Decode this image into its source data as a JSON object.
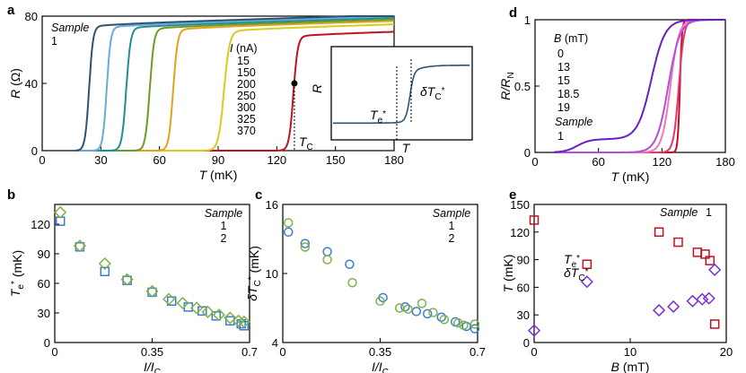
{
  "chart_data": [
    {
      "id": "a",
      "panel_label": "a",
      "type": "line",
      "xlabel": "T (mK)",
      "ylabel": "R (Ω)",
      "xlim": [
        0,
        180
      ],
      "ylim": [
        0,
        80
      ],
      "xticks": [
        0,
        30,
        60,
        90,
        120,
        150,
        180
      ],
      "yticks": [
        0,
        40,
        80
      ],
      "sample_title": "Sample",
      "sample_value": "1",
      "legend_title": "I (nA)",
      "Tc_label": "T_C",
      "Tc": 129,
      "Tc_point": [
        129,
        40
      ],
      "series": [
        {
          "name": "15",
          "color": "#c0111f",
          "tmid": 128.5,
          "width": 2.2,
          "rmax": 69
        },
        {
          "name": "150",
          "color": "#d9cc1c",
          "tmid": 93,
          "width": 2.8,
          "rmax": 72
        },
        {
          "name": "200",
          "color": "#e3a21a",
          "tmid": 67,
          "width": 2.2,
          "rmax": 73
        },
        {
          "name": "250",
          "color": "#6e9a26",
          "tmid": 55,
          "width": 2.2,
          "rmax": 73.5
        },
        {
          "name": "300",
          "color": "#1f8f8f",
          "tmid": 43,
          "width": 2.2,
          "rmax": 74
        },
        {
          "name": "325",
          "color": "#6aaad9",
          "tmid": 33,
          "width": 2.0,
          "rmax": 74.5
        },
        {
          "name": "370",
          "color": "#2c5476",
          "tmid": 24,
          "width": 2.0,
          "rmax": 75
        }
      ],
      "inset": {
        "xlabel": "T",
        "ylabel": "R",
        "te_label": "T_e*",
        "dtc_label": "δT_C*"
      }
    },
    {
      "id": "b",
      "panel_label": "b",
      "type": "scatter",
      "xlabel": "I/I_C",
      "ylabel": "T_e* (mK)",
      "xlim": [
        0,
        0.7
      ],
      "ylim": [
        0,
        140
      ],
      "xticks": [
        0,
        0.35,
        0.7
      ],
      "xticklabels": [
        "0",
        "0.35",
        "0.7"
      ],
      "yticks": [
        0,
        30,
        60,
        90,
        120
      ],
      "legend_title": "Sample",
      "series": [
        {
          "name": "1",
          "marker": "square",
          "color": "#3d7bd0",
          "points": [
            [
              0.02,
              123
            ],
            [
              0.09,
              97
            ],
            [
              0.18,
              72
            ],
            [
              0.26,
              63
            ],
            [
              0.35,
              51
            ],
            [
              0.42,
              42
            ],
            [
              0.48,
              36
            ],
            [
              0.53,
              32
            ],
            [
              0.58,
              27
            ],
            [
              0.63,
              22
            ],
            [
              0.67,
              19
            ],
            [
              0.68,
              17
            ]
          ]
        },
        {
          "name": "2",
          "marker": "diamond",
          "color": "#7cb342",
          "points": [
            [
              0.02,
              132
            ],
            [
              0.09,
              98
            ],
            [
              0.18,
              80
            ],
            [
              0.26,
              64
            ],
            [
              0.35,
              52
            ],
            [
              0.41,
              44
            ],
            [
              0.46,
              40
            ],
            [
              0.51,
              35
            ],
            [
              0.55,
              31
            ],
            [
              0.59,
              28
            ],
            [
              0.63,
              25
            ],
            [
              0.66,
              22
            ],
            [
              0.68,
              21
            ]
          ]
        }
      ]
    },
    {
      "id": "c",
      "panel_label": "c",
      "type": "scatter",
      "xlabel": "I/I_C",
      "ylabel": "δT_C* (mK)",
      "xlim": [
        0,
        0.7
      ],
      "ylim": [
        4,
        16
      ],
      "xticks": [
        0,
        0.35,
        0.7
      ],
      "xticklabels": [
        "0",
        "0.35",
        "0.7"
      ],
      "yticks": [
        4,
        10,
        16
      ],
      "legend_title": "Sample",
      "series": [
        {
          "name": "1",
          "marker": "circle",
          "color": "#3d7bd0",
          "points": [
            [
              0.02,
              13.6
            ],
            [
              0.08,
              12.6
            ],
            [
              0.16,
              11.9
            ],
            [
              0.24,
              10.8
            ],
            [
              0.36,
              7.9
            ],
            [
              0.44,
              7.1
            ],
            [
              0.48,
              6.7
            ],
            [
              0.52,
              6.5
            ],
            [
              0.57,
              6.2
            ],
            [
              0.62,
              5.8
            ],
            [
              0.66,
              5.4
            ],
            [
              0.69,
              5.2
            ]
          ]
        },
        {
          "name": "2",
          "marker": "circle",
          "color": "#7cb342",
          "points": [
            [
              0.02,
              14.4
            ],
            [
              0.08,
              12.3
            ],
            [
              0.16,
              11.2
            ],
            [
              0.25,
              9.2
            ],
            [
              0.35,
              7.6
            ],
            [
              0.42,
              7.0
            ],
            [
              0.45,
              6.9
            ],
            [
              0.5,
              7.4
            ],
            [
              0.54,
              6.6
            ],
            [
              0.58,
              6.0
            ],
            [
              0.63,
              5.7
            ],
            [
              0.65,
              5.5
            ],
            [
              0.69,
              5.6
            ]
          ]
        }
      ]
    },
    {
      "id": "d",
      "panel_label": "d",
      "type": "line",
      "xlabel": "T (mK)",
      "ylabel": "R/R_N",
      "xlim": [
        0,
        180
      ],
      "ylim": [
        0,
        1
      ],
      "xticks": [
        0,
        60,
        120,
        180
      ],
      "yticks": [
        0,
        0.5,
        1
      ],
      "yticklabels": [
        "0",
        "0.5",
        "1"
      ],
      "legend_title": "B (mT)",
      "sample_title": "Sample",
      "sample_value": "1",
      "series": [
        {
          "name": "0",
          "color": "#c0111f",
          "tmid": 137,
          "width": 2.0,
          "plateau": 0
        },
        {
          "name": "13",
          "color": "#e8336f",
          "tmid": 136,
          "width": 5.0,
          "plateau": 0
        },
        {
          "name": "15",
          "color": "#f07ab0",
          "tmid": 128,
          "width": 8.0,
          "plateau": 0
        },
        {
          "name": "18.5",
          "color": "#b14fe0",
          "tmid": 126,
          "width": 11.0,
          "plateau": 0
        },
        {
          "name": "19",
          "color": "#6a1fc6",
          "tmid": 110,
          "width": 13.0,
          "plateau": 0.1
        }
      ]
    },
    {
      "id": "e",
      "panel_label": "e",
      "type": "scatter",
      "xlabel": "B (mT)",
      "ylabel": "T (mK)",
      "xlim": [
        0,
        20
      ],
      "ylim": [
        0,
        150
      ],
      "xticks": [
        0,
        10,
        20
      ],
      "yticks": [
        0,
        30,
        60,
        90,
        120,
        150
      ],
      "sample_title": "Sample",
      "sample_value": "1",
      "series": [
        {
          "name": "T_e*",
          "marker": "square",
          "color": "#c0111f",
          "points": [
            [
              0,
              133
            ],
            [
              5.5,
              85
            ],
            [
              13,
              120
            ],
            [
              15,
              109
            ],
            [
              17,
              98
            ],
            [
              17.8,
              96
            ],
            [
              18.3,
              89
            ],
            [
              18.8,
              20
            ]
          ]
        },
        {
          "name": "δT_C*",
          "marker": "diamond",
          "color": "#7b2fd6",
          "points": [
            [
              0,
              13
            ],
            [
              5.5,
              66
            ],
            [
              13,
              35
            ],
            [
              14.5,
              39
            ],
            [
              16.5,
              45
            ],
            [
              17.5,
              47
            ],
            [
              18.2,
              48
            ],
            [
              18.8,
              79
            ]
          ]
        }
      ]
    }
  ]
}
